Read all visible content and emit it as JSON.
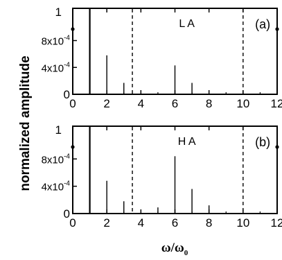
{
  "ylabel": "normalized amplitude",
  "xlabel": {
    "main": "ω/ω",
    "sub": "0"
  },
  "chart_data": [
    {
      "type": "bar",
      "panel": "(a)",
      "series_label": "L A",
      "xlim": [
        0,
        12
      ],
      "ylim": [
        0,
        0.00128
      ],
      "x_ticks": [
        "0",
        "2",
        "4",
        "6",
        "8",
        "10",
        "12"
      ],
      "y_ticks": [
        {
          "value": 0,
          "base": "0",
          "exp": ""
        },
        {
          "value": 0.0004,
          "base": "4x10",
          "exp": "-4"
        },
        {
          "value": 0.0008,
          "base": "8x10",
          "exp": "-4"
        }
      ],
      "y_top_label": "1",
      "y_break": true,
      "dashed_lines": [
        3.5,
        10
      ],
      "x": [
        1,
        2,
        3,
        6,
        7
      ],
      "values": [
        1,
        0.00058,
        0.00017,
        0.00043,
        0.00017
      ],
      "grid": false
    },
    {
      "type": "bar",
      "panel": "(b)",
      "series_label": "H A",
      "xlim": [
        0,
        12
      ],
      "ylim": [
        0,
        0.00128
      ],
      "x_ticks": [
        "0",
        "2",
        "4",
        "6",
        "8",
        "10",
        "12"
      ],
      "y_ticks": [
        {
          "value": 0,
          "base": "0",
          "exp": ""
        },
        {
          "value": 0.0004,
          "base": "4x10",
          "exp": "-4"
        },
        {
          "value": 0.0008,
          "base": "8x10",
          "exp": "-4"
        }
      ],
      "y_top_label": "1",
      "y_break": true,
      "dashed_lines": [
        3.5,
        10
      ],
      "x": [
        1,
        2,
        3,
        5,
        6,
        7,
        8
      ],
      "values": [
        1,
        0.00048,
        0.00018,
        9e-05,
        0.00084,
        0.00036,
        0.00012
      ],
      "grid": false
    }
  ]
}
